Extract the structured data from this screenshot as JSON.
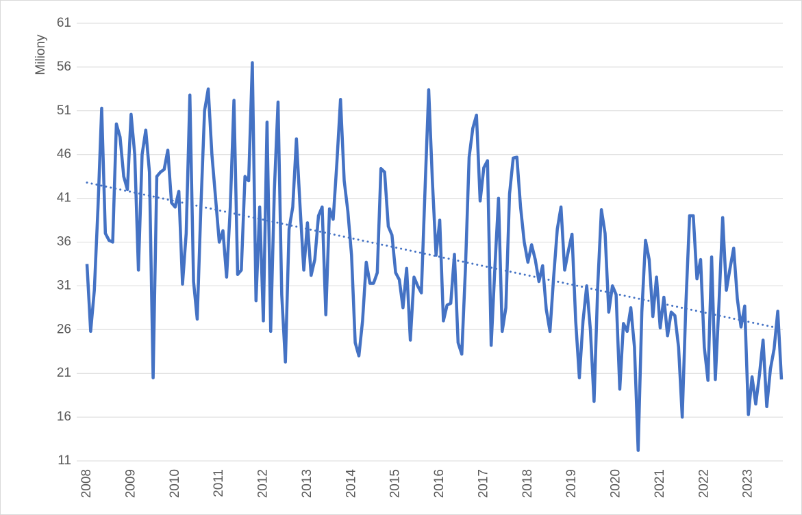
{
  "chart_data": {
    "type": "line",
    "y_label": "Miliony",
    "categories": [
      "2008",
      null,
      null,
      null,
      null,
      null,
      null,
      null,
      null,
      null,
      null,
      null,
      "2009",
      null,
      null,
      null,
      null,
      null,
      null,
      null,
      null,
      null,
      null,
      null,
      "2010",
      null,
      null,
      null,
      null,
      null,
      null,
      null,
      null,
      null,
      null,
      null,
      "2011",
      null,
      null,
      null,
      null,
      null,
      null,
      null,
      null,
      null,
      null,
      null,
      "2012",
      null,
      null,
      null,
      null,
      null,
      null,
      null,
      null,
      null,
      null,
      null,
      "2013",
      null,
      null,
      null,
      null,
      null,
      null,
      null,
      null,
      null,
      null,
      null,
      "2014",
      null,
      null,
      null,
      null,
      null,
      null,
      null,
      null,
      null,
      null,
      null,
      "2015",
      null,
      null,
      null,
      null,
      null,
      null,
      null,
      null,
      null,
      null,
      null,
      "2016",
      null,
      null,
      null,
      null,
      null,
      null,
      null,
      null,
      null,
      null,
      null,
      "2017",
      null,
      null,
      null,
      null,
      null,
      null,
      null,
      null,
      null,
      null,
      null,
      "2018",
      null,
      null,
      null,
      null,
      null,
      null,
      null,
      null,
      null,
      null,
      null,
      "2019",
      null,
      null,
      null,
      null,
      null,
      null,
      null,
      null,
      null,
      null,
      null,
      "2020",
      null,
      null,
      null,
      null,
      null,
      null,
      null,
      null,
      null,
      null,
      null,
      "2021",
      null,
      null,
      null,
      null,
      null,
      null,
      null,
      null,
      null,
      null,
      null,
      "2022",
      null,
      null,
      null,
      null,
      null,
      null,
      null,
      null,
      null,
      null,
      null,
      "2023",
      null,
      null,
      null,
      null,
      null,
      null,
      null,
      null,
      null
    ],
    "series": [
      {
        "color": "#4472c4",
        "values": [
          33.5,
          25.8,
          30.5,
          40,
          51.3,
          37,
          36.2,
          36,
          49.5,
          48,
          43.5,
          42,
          50.6,
          46,
          32.8,
          46,
          48.8,
          44,
          20.5,
          43.5,
          44,
          44.3,
          46.5,
          40.5,
          40,
          41.8,
          31.2,
          37,
          52.8,
          31.5,
          27.2,
          40,
          51,
          53.5,
          46,
          41,
          36,
          37.3,
          32,
          40,
          52.2,
          32.3,
          32.8,
          43.5,
          43,
          56.5,
          29.3,
          40,
          27,
          49.7,
          25.8,
          42,
          52,
          30,
          22.3,
          37.5,
          40,
          47.8,
          40,
          32.8,
          38.2,
          32.2,
          34,
          39,
          40,
          27.7,
          39.8,
          38.6,
          45,
          52.3,
          43,
          39.5,
          34.5,
          24.5,
          23,
          27,
          33.7,
          31.3,
          31.3,
          32.5,
          44.4,
          44,
          37.8,
          36.8,
          32.5,
          31.7,
          28.5,
          33,
          24.8,
          32,
          31,
          30.2,
          42,
          53.4,
          43,
          34.5,
          38.5,
          27,
          28.8,
          29,
          34.6,
          24.5,
          23.2,
          33,
          45.7,
          49,
          50.5,
          40.7,
          44.5,
          45.3,
          24.2,
          33,
          41,
          25.8,
          28.5,
          41.5,
          45.6,
          45.7,
          40,
          36,
          33.7,
          35.7,
          34,
          31.5,
          33.3,
          28.3,
          25.8,
          32,
          37.5,
          40,
          32.8,
          35,
          36.9,
          27,
          20.5,
          27,
          31,
          26,
          17.8,
          31,
          39.7,
          37,
          28,
          31,
          30,
          19.2,
          26.7,
          25.8,
          28.5,
          24,
          12.2,
          28,
          36.2,
          34,
          27.5,
          32,
          26.2,
          29.7,
          25.3,
          28,
          27.6,
          24,
          16,
          29,
          39,
          39,
          31.8,
          34,
          24,
          20.2,
          34.3,
          20.3,
          29,
          38.8,
          30.5,
          33,
          35.3,
          29.5,
          26.3,
          28.7,
          16.3,
          20.6,
          17.5,
          20.8,
          24.8,
          17.2,
          21.5,
          23.8,
          28.1,
          20.3
        ]
      }
    ],
    "trendline": {
      "start": 42.8,
      "end": 26.1,
      "color": "#4472c4",
      "dash": "dotted"
    },
    "ylim": [
      11,
      61
    ],
    "yticks": [
      11,
      16,
      21,
      26,
      31,
      36,
      41,
      46,
      51,
      56,
      61
    ],
    "grid": true
  }
}
